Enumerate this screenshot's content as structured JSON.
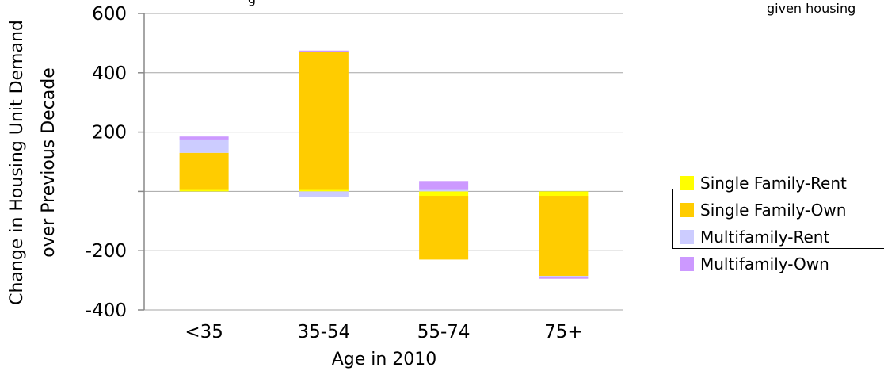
{
  "clipped_title": "g",
  "clipped_note": "given housing",
  "chart_data": {
    "type": "bar",
    "stacked": true,
    "xlabel": "Age in 2010",
    "ylabel": [
      "Change in Housing Unit Demand",
      "over Previous Decade"
    ],
    "ylim": [
      -400,
      600
    ],
    "yticks": [
      -400,
      -200,
      0,
      200,
      400,
      600
    ],
    "ytick_labels": [
      "-400",
      "-200",
      "",
      "200",
      "400",
      "600"
    ],
    "categories": [
      "<35",
      "35-54",
      "55-74",
      "75+"
    ],
    "series": [
      {
        "name": "Single Family-Rent",
        "color": "#FFFF00",
        "values": [
          5,
          5,
          -15,
          -15
        ]
      },
      {
        "name": "Single Family-Own",
        "color": "#FFCC00",
        "values": [
          125,
          465,
          -215,
          -270
        ]
      },
      {
        "name": "Multifamily-Rent",
        "color": "#CCCCFF",
        "values": [
          45,
          -20,
          5,
          -5
        ]
      },
      {
        "name": "Multifamily-Own",
        "color": "#CC99FF",
        "values": [
          10,
          5,
          30,
          -5
        ]
      }
    ],
    "legend_position": "right"
  }
}
